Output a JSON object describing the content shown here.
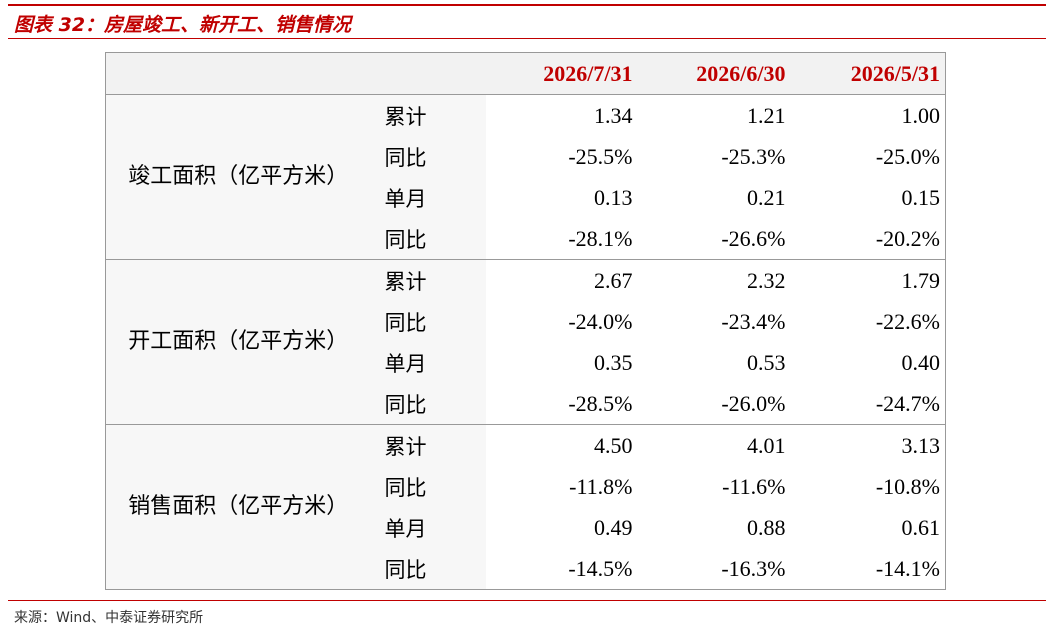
{
  "header": {
    "title": "图表 32：房屋竣工、新开工、销售情况"
  },
  "table": {
    "columns": [
      "2026/7/31",
      "2026/6/30",
      "2026/5/31"
    ],
    "groups": [
      {
        "label": "竣工面积（亿平方米）",
        "rows": [
          {
            "label": "累计",
            "values": [
              "1.34",
              "1.21",
              "1.00"
            ]
          },
          {
            "label": "同比",
            "values": [
              "-25.5%",
              "-25.3%",
              "-25.0%"
            ]
          },
          {
            "label": "单月",
            "values": [
              "0.13",
              "0.21",
              "0.15"
            ]
          },
          {
            "label": "同比",
            "values": [
              "-28.1%",
              "-26.6%",
              "-20.2%"
            ]
          }
        ]
      },
      {
        "label": "开工面积（亿平方米）",
        "rows": [
          {
            "label": "累计",
            "values": [
              "2.67",
              "2.32",
              "1.79"
            ]
          },
          {
            "label": "同比",
            "values": [
              "-24.0%",
              "-23.4%",
              "-22.6%"
            ]
          },
          {
            "label": "单月",
            "values": [
              "0.35",
              "0.53",
              "0.40"
            ]
          },
          {
            "label": "同比",
            "values": [
              "-28.5%",
              "-26.0%",
              "-24.7%"
            ]
          }
        ]
      },
      {
        "label": "销售面积（亿平方米）",
        "rows": [
          {
            "label": "累计",
            "values": [
              "4.50",
              "4.01",
              "3.13"
            ]
          },
          {
            "label": "同比",
            "values": [
              "-11.8%",
              "-11.6%",
              "-10.8%"
            ]
          },
          {
            "label": "单月",
            "values": [
              "0.49",
              "0.88",
              "0.61"
            ]
          },
          {
            "label": "同比",
            "values": [
              "-14.5%",
              "-16.3%",
              "-14.1%"
            ]
          }
        ]
      }
    ]
  },
  "footer": {
    "source": "来源：Wind、中泰证券研究所"
  }
}
